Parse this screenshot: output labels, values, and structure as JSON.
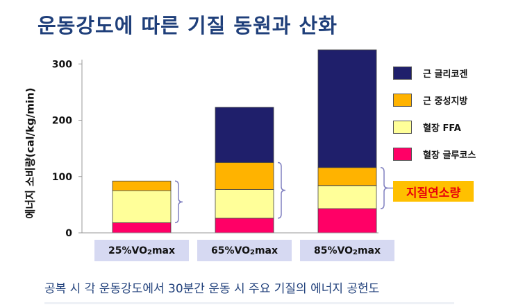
{
  "title": "운동강도에 따른 기질 동원과 산화",
  "caption": "공복 시 각 운동강도에서 30분간 운동 시 주요 기질의 에너지 공헌도",
  "callout": "지질연소량",
  "chart_data": {
    "type": "bar",
    "stacked": true,
    "ylabel": "에너지 소비량(cal/kg/min)",
    "ylim": [
      0,
      320
    ],
    "yticks": [
      0,
      100,
      200,
      300
    ],
    "categories": [
      {
        "base": "25%VO",
        "sub": "2",
        "rest": "max"
      },
      {
        "base": "65%VO",
        "sub": "2",
        "rest": "max"
      },
      {
        "base": "85%VO",
        "sub": "2",
        "rest": "max"
      }
    ],
    "series": [
      {
        "name": "혈장 글루코스",
        "color": "#ff0066",
        "values": [
          18,
          26,
          43
        ]
      },
      {
        "name": "혈장 FFA",
        "color": "#ffff99",
        "values": [
          57,
          51,
          41
        ]
      },
      {
        "name": "근 중성지방",
        "color": "#ffb300",
        "values": [
          17,
          48,
          32
        ]
      },
      {
        "name": "근 글리코겐",
        "color": "#1f1f6b",
        "values": [
          0,
          98,
          209
        ]
      }
    ],
    "legend_order": [
      "근 글리코겐",
      "근 중성지방",
      "혈장 FFA",
      "혈장 글루코스"
    ],
    "legend_position": "right"
  }
}
